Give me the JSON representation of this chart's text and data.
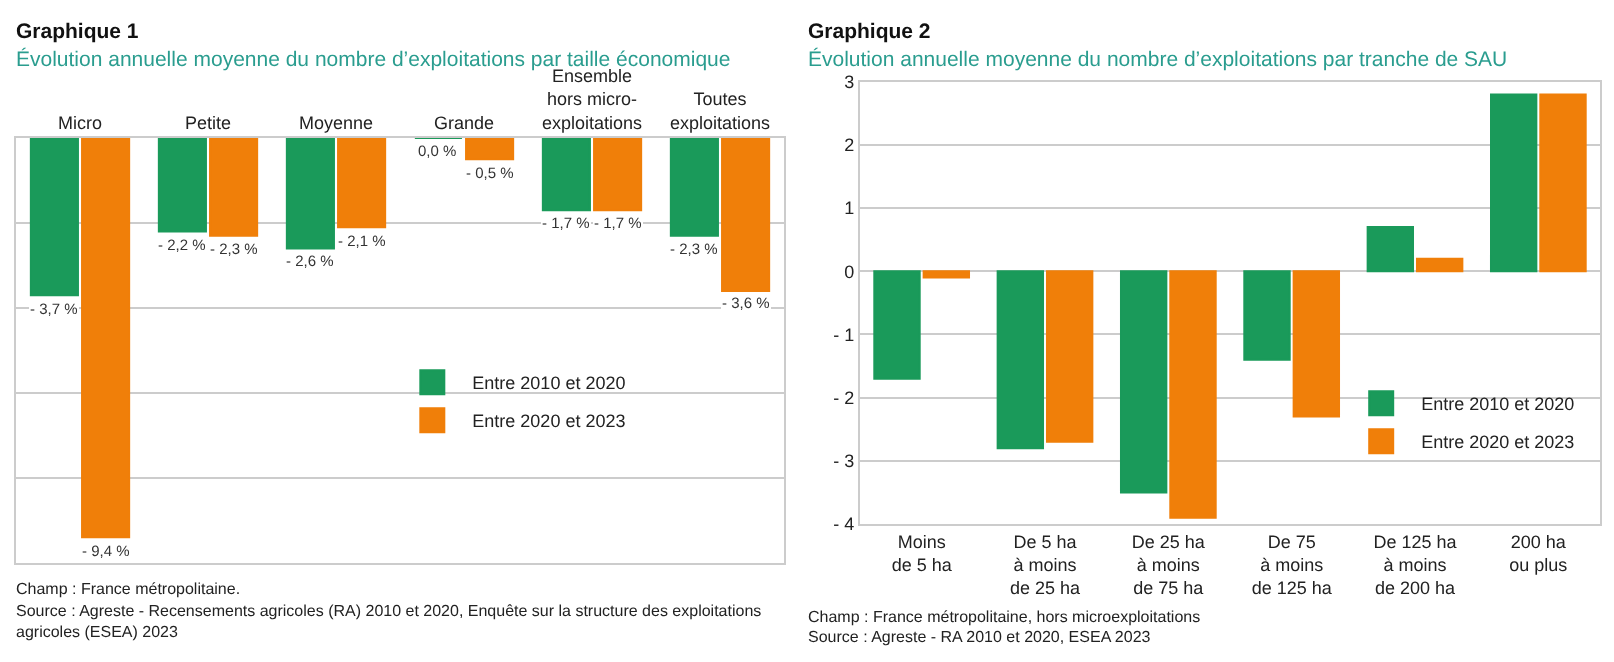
{
  "chart_data": [
    {
      "type": "bar",
      "title": "Graphique 1",
      "subtitle": "Évolution annuelle moyenne du nombre d’exploitations par taille économique",
      "categories": [
        "Micro",
        "Petite",
        "Moyenne",
        "Grande",
        "Ensemble\nhors micro-\nexploitations",
        "Toutes\nexploitations"
      ],
      "series": [
        {
          "name": "Entre 2010 et 2020",
          "color": "#1a9a5a",
          "values": [
            -3.7,
            -2.2,
            -2.6,
            0.0,
            -1.7,
            -2.3
          ],
          "value_labels": [
            "- 3,7 %",
            "- 2,2 %",
            "- 2,6 %",
            "0,0 %",
            "- 1,7 %",
            "- 2,3 %"
          ]
        },
        {
          "name": "Entre 2020 et 2023",
          "color": "#f07f09",
          "values": [
            -9.4,
            -2.3,
            -2.1,
            -0.5,
            -1.7,
            -3.6
          ],
          "value_labels": [
            "- 9,4 %",
            "- 2,3 %",
            "- 2,1 %",
            "- 0,5 %",
            "- 1,7 %",
            "- 3,6 %"
          ]
        }
      ],
      "ylim": [
        -10,
        0
      ],
      "yticks": [
        {
          "value": -10,
          "label": null
        },
        {
          "value": -8,
          "label": null
        },
        {
          "value": -6,
          "label": null
        },
        {
          "value": -4,
          "label": null
        },
        {
          "value": -2,
          "label": null
        },
        {
          "value": 0,
          "label": null
        }
      ],
      "grid": "y",
      "legend": "center",
      "tick_labels": "x",
      "annotations": [
        "Champ : France métropolitaine.",
        "Source : Agreste - Recensements agricoles (RA) 2010 et 2020, Enquête sur la structure des exploitations\nagricoles (ESEA) 2023"
      ]
    },
    {
      "type": "bar",
      "title": "Graphique 2",
      "subtitle": "Évolution annuelle moyenne du nombre d’exploitations par tranche de SAU",
      "categories": [
        "Moins\nde 5 ha",
        "De 5 ha\nà moins\nde 25 ha",
        "De 25 ha\nà moins\nde 75 ha",
        "De 75\nà moins\nde 125 ha",
        "De 125 ha\nà moins\nde 200 ha",
        "200 ha\nou plus"
      ],
      "series": [
        {
          "name": "Entre 2010 et 2020",
          "color": "#1a9a5a",
          "values": [
            -1.7,
            -2.8,
            -3.5,
            -1.4,
            0.7,
            2.8
          ]
        },
        {
          "name": "Entre 2020 et 2023",
          "color": "#f07f09",
          "values": [
            -0.1,
            -2.7,
            -3.9,
            -2.3,
            0.2,
            2.8
          ]
        }
      ],
      "ylim": [
        -4,
        3
      ],
      "yticks": [
        {
          "value": -4,
          "label": "- 4"
        },
        {
          "value": -3,
          "label": "- 3"
        },
        {
          "value": -2,
          "label": "- 2"
        },
        {
          "value": -1,
          "label": "- 1"
        },
        0,
        1,
        2,
        3
      ],
      "grid": "y",
      "legend": "right",
      "annotations": [
        "Champ : France métropolitaine, hors microexploitations",
        "Source : Agreste - RA 2010 et 2020, ESEA 2023"
      ]
    }
  ]
}
